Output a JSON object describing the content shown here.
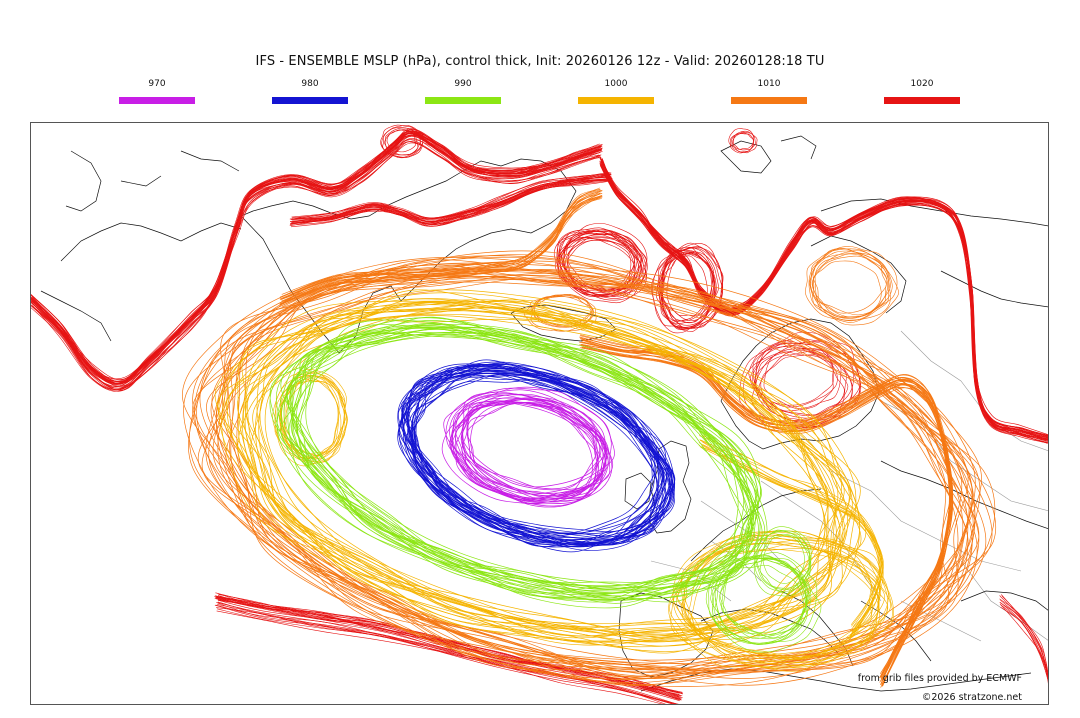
{
  "title": "IFS - ENSEMBLE MSLP (hPa), control thick, Init: 20260126 12z - Valid: 20260128:18 TU",
  "legend": [
    {
      "label": "970",
      "color": "#c81ee6"
    },
    {
      "label": "980",
      "color": "#1414d2"
    },
    {
      "label": "990",
      "color": "#8ce614"
    },
    {
      "label": "1000",
      "color": "#f5b400"
    },
    {
      "label": "1010",
      "color": "#f57814"
    },
    {
      "label": "1020",
      "color": "#e61414"
    }
  ],
  "credits": {
    "source": "from grib files provided by ECMWF",
    "copyright": "©2026 stratzone.net"
  }
}
